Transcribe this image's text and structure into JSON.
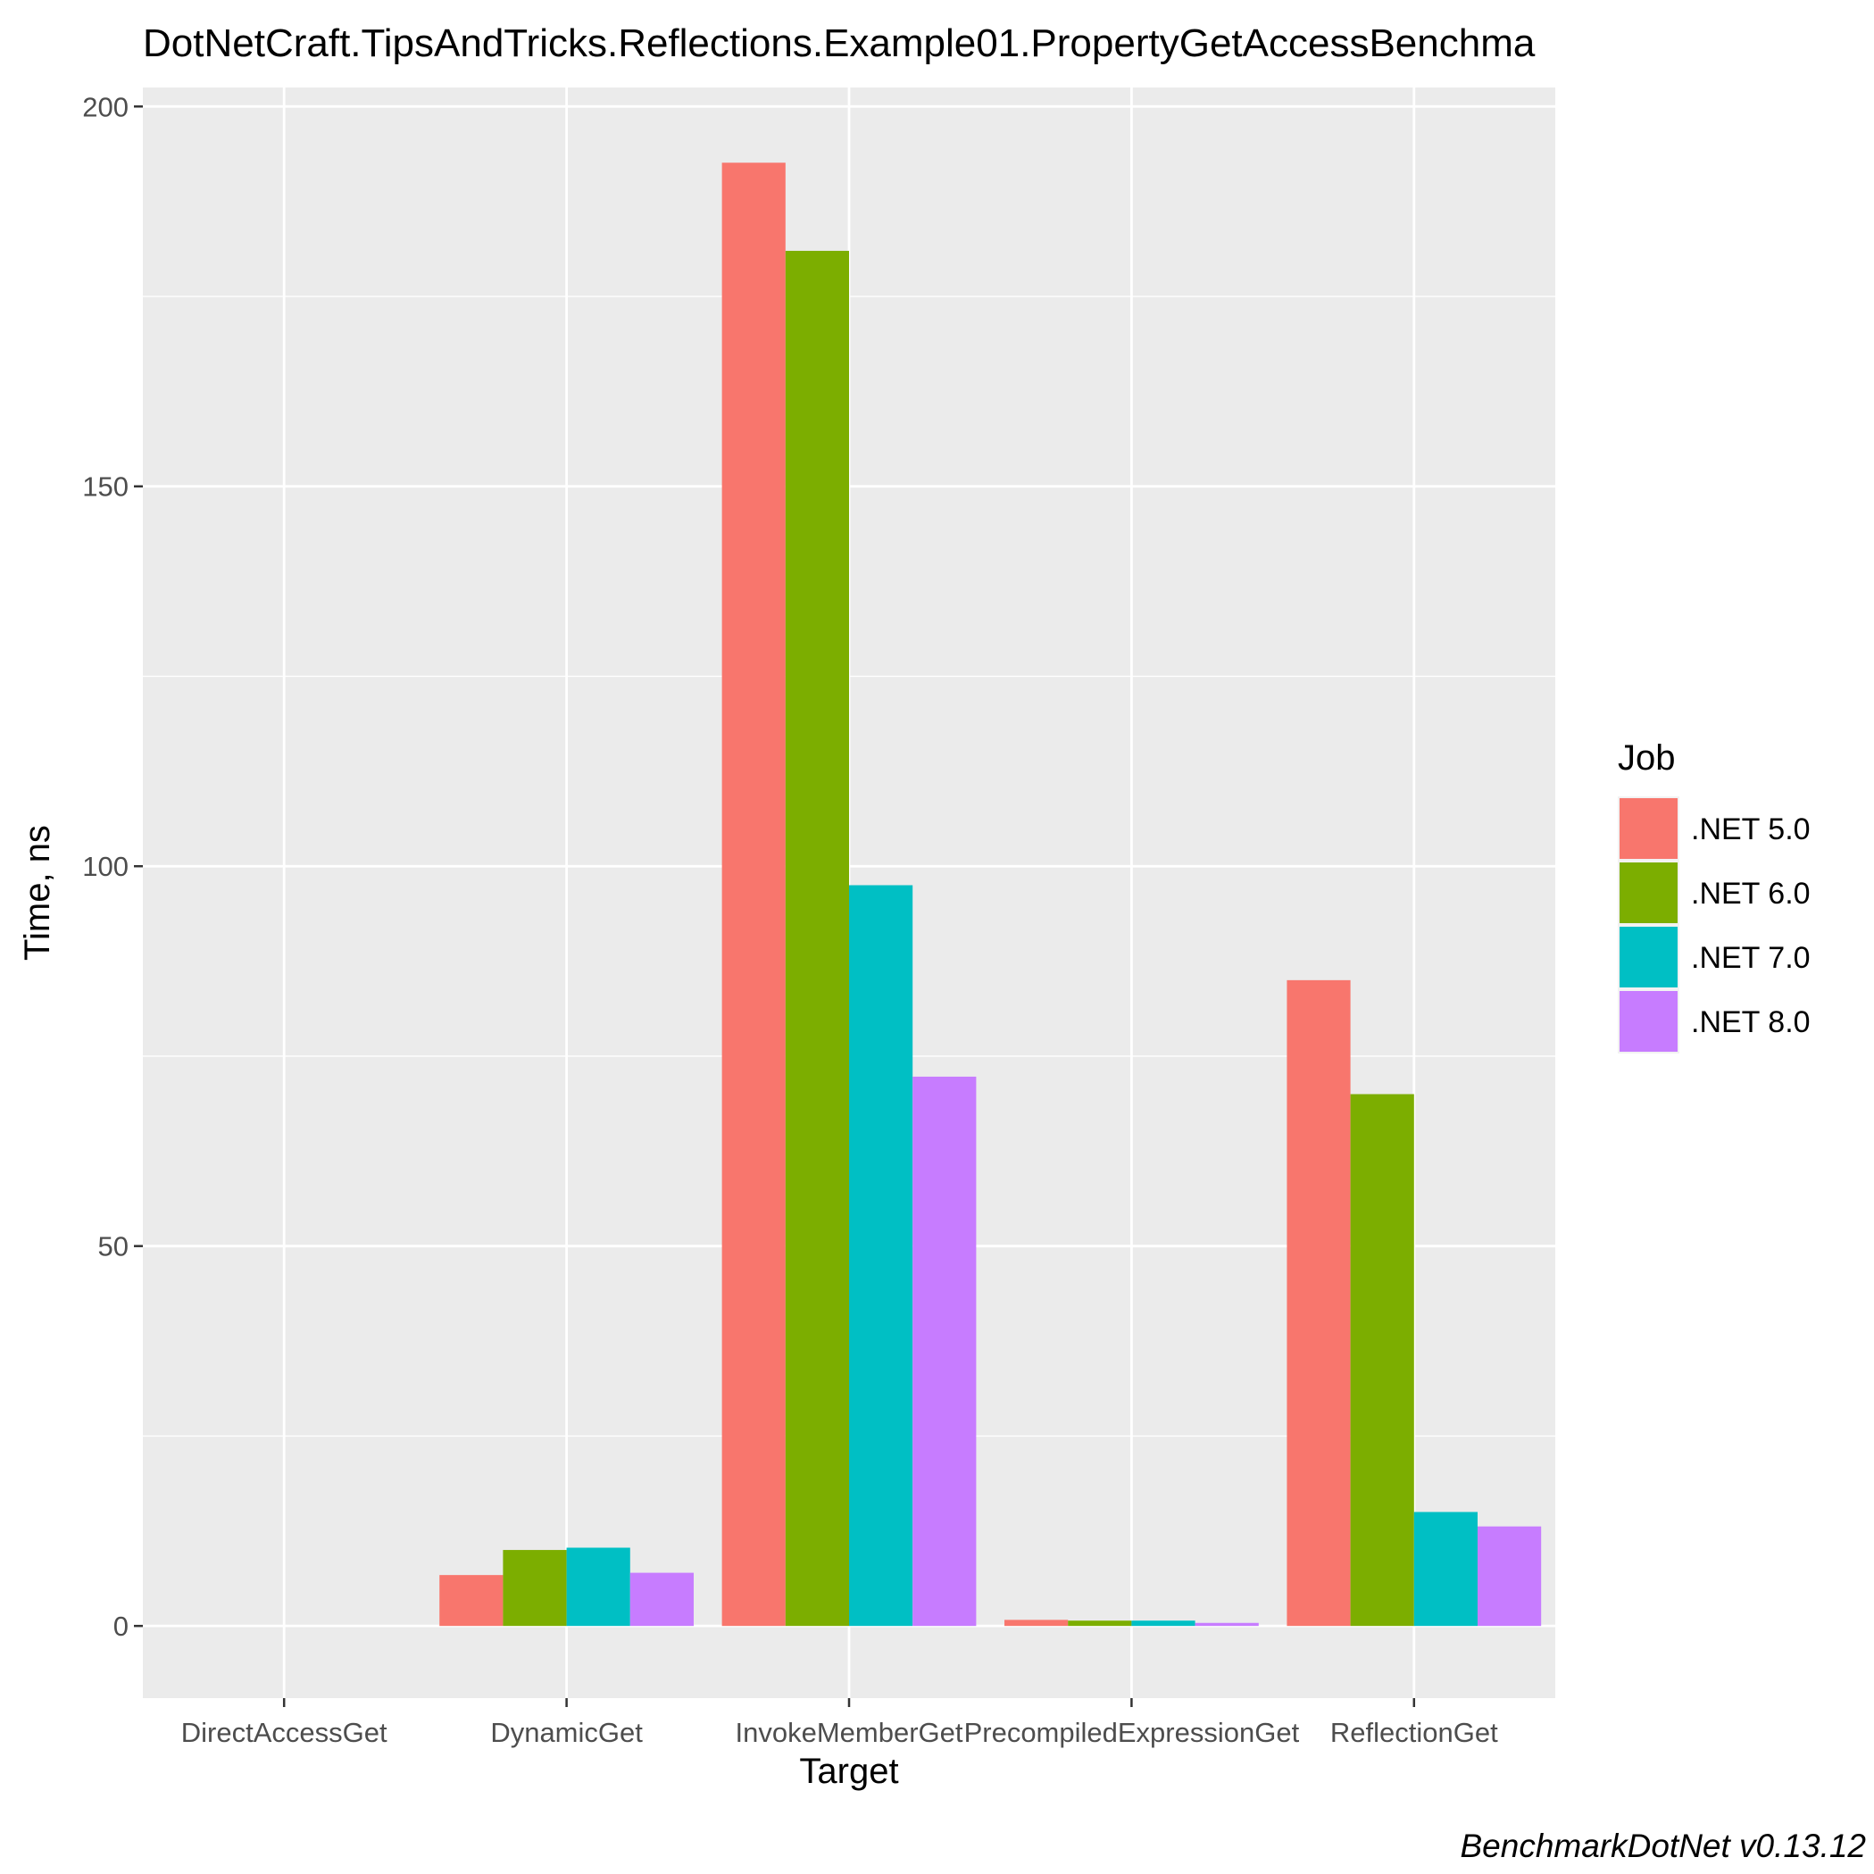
{
  "chart_data": {
    "type": "bar",
    "title": "DotNetCraft.TipsAndTricks.Reflections.Example01.PropertyGetAccessBenchma",
    "xlabel": "Target",
    "ylabel": "Time, ns",
    "caption": "BenchmarkDotNet v0.13.12",
    "categories": [
      "DirectAccessGet",
      "DynamicGet",
      "InvokeMemberGet",
      "PrecompiledExpressionGet",
      "ReflectionGet"
    ],
    "yticks": [
      0,
      50,
      100,
      150,
      200
    ],
    "ylim": [
      -9.5,
      202.5
    ],
    "grid": true,
    "legend_title": "Job",
    "legend_position": "right",
    "series": [
      {
        "name": ".NET 5.0",
        "color": "#F8766D",
        "values": [
          0,
          6.7,
          192.6,
          0.8,
          85.0
        ]
      },
      {
        "name": ".NET 6.0",
        "color": "#7CAE00",
        "values": [
          0,
          10.0,
          181.0,
          0.7,
          70.0
        ]
      },
      {
        "name": ".NET 7.0",
        "color": "#00BFC4",
        "values": [
          0,
          10.3,
          97.5,
          0.7,
          15.0
        ]
      },
      {
        "name": ".NET 8.0",
        "color": "#C77CFF",
        "values": [
          0,
          7.0,
          72.3,
          0.4,
          13.1
        ]
      }
    ],
    "panel_color": "#EBEBEB",
    "grid_color": "#FFFFFF"
  }
}
